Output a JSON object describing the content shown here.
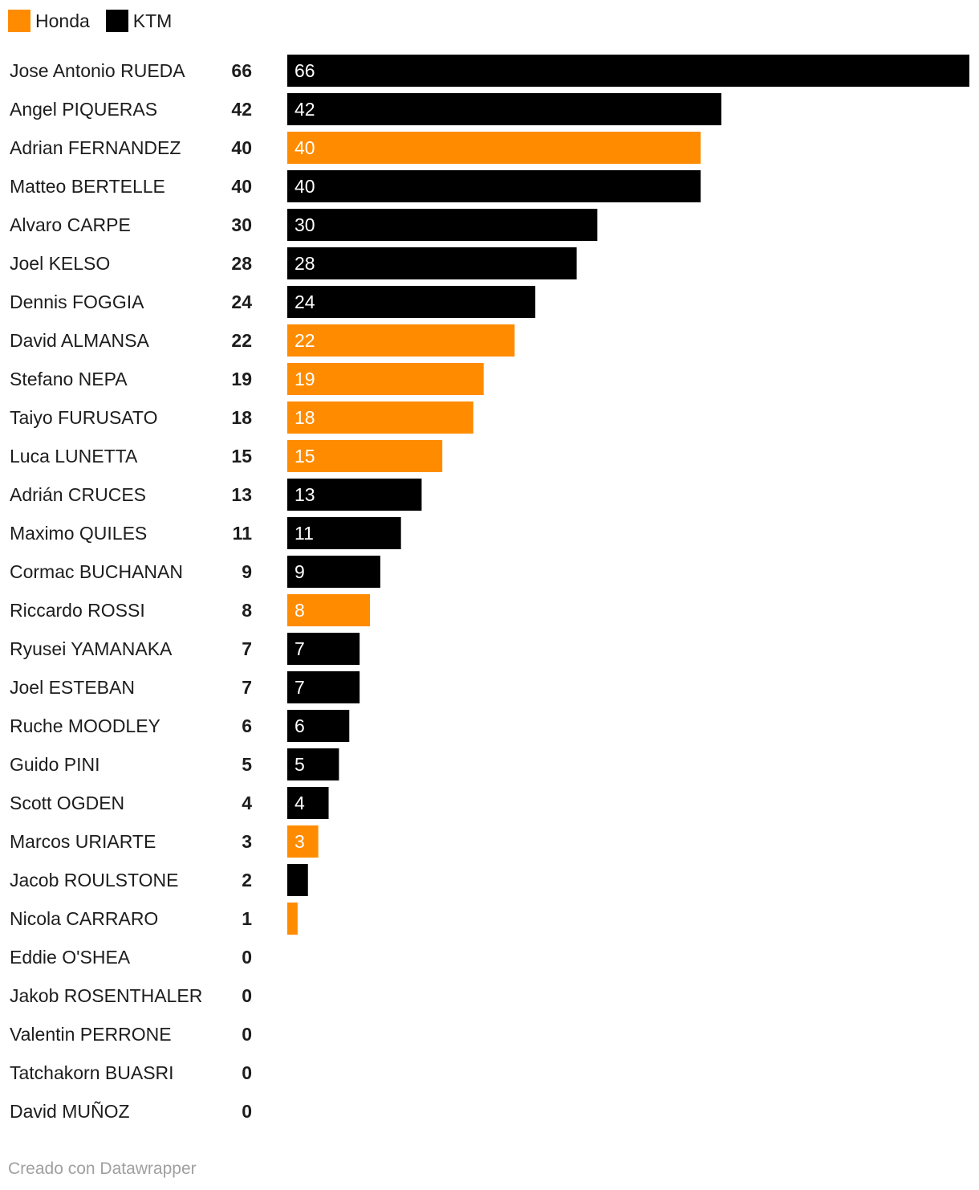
{
  "legend": [
    {
      "label": "Honda",
      "color": "#ff8c00"
    },
    {
      "label": "KTM",
      "color": "#000000"
    }
  ],
  "footer": "Creado con Datawrapper",
  "chart_data": {
    "type": "bar",
    "orientation": "horizontal",
    "title": "",
    "xlabel": "",
    "ylabel": "",
    "xlim": [
      0,
      66
    ],
    "grid": false,
    "legend_position": "top-left",
    "series_colors": {
      "Honda": "#ff8c00",
      "KTM": "#000000"
    },
    "rows": [
      {
        "name": "Jose Antonio RUEDA",
        "value": 66,
        "brand": "KTM"
      },
      {
        "name": "Angel PIQUERAS",
        "value": 42,
        "brand": "KTM"
      },
      {
        "name": "Adrian FERNANDEZ",
        "value": 40,
        "brand": "Honda"
      },
      {
        "name": "Matteo BERTELLE",
        "value": 40,
        "brand": "KTM"
      },
      {
        "name": "Alvaro CARPE",
        "value": 30,
        "brand": "KTM"
      },
      {
        "name": "Joel KELSO",
        "value": 28,
        "brand": "KTM"
      },
      {
        "name": "Dennis FOGGIA",
        "value": 24,
        "brand": "KTM"
      },
      {
        "name": "David ALMANSA",
        "value": 22,
        "brand": "Honda"
      },
      {
        "name": "Stefano NEPA",
        "value": 19,
        "brand": "Honda"
      },
      {
        "name": "Taiyo FURUSATO",
        "value": 18,
        "brand": "Honda"
      },
      {
        "name": "Luca LUNETTA",
        "value": 15,
        "brand": "Honda"
      },
      {
        "name": "Adrián CRUCES",
        "value": 13,
        "brand": "KTM"
      },
      {
        "name": "Maximo QUILES",
        "value": 11,
        "brand": "KTM"
      },
      {
        "name": "Cormac BUCHANAN",
        "value": 9,
        "brand": "KTM"
      },
      {
        "name": "Riccardo ROSSI",
        "value": 8,
        "brand": "Honda"
      },
      {
        "name": "Ryusei YAMANAKA",
        "value": 7,
        "brand": "KTM"
      },
      {
        "name": "Joel ESTEBAN",
        "value": 7,
        "brand": "KTM"
      },
      {
        "name": "Ruche MOODLEY",
        "value": 6,
        "brand": "KTM"
      },
      {
        "name": "Guido PINI",
        "value": 5,
        "brand": "KTM"
      },
      {
        "name": "Scott OGDEN",
        "value": 4,
        "brand": "KTM"
      },
      {
        "name": "Marcos URIARTE",
        "value": 3,
        "brand": "Honda"
      },
      {
        "name": "Jacob ROULSTONE",
        "value": 2,
        "brand": "KTM"
      },
      {
        "name": "Nicola CARRARO",
        "value": 1,
        "brand": "Honda"
      },
      {
        "name": "Eddie O'SHEA",
        "value": 0,
        "brand": null
      },
      {
        "name": "Jakob ROSENTHALER",
        "value": 0,
        "brand": null
      },
      {
        "name": "Valentin PERRONE",
        "value": 0,
        "brand": null
      },
      {
        "name": "Tatchakorn BUASRI",
        "value": 0,
        "brand": null
      },
      {
        "name": "David MUÑOZ",
        "value": 0,
        "brand": null
      }
    ]
  }
}
